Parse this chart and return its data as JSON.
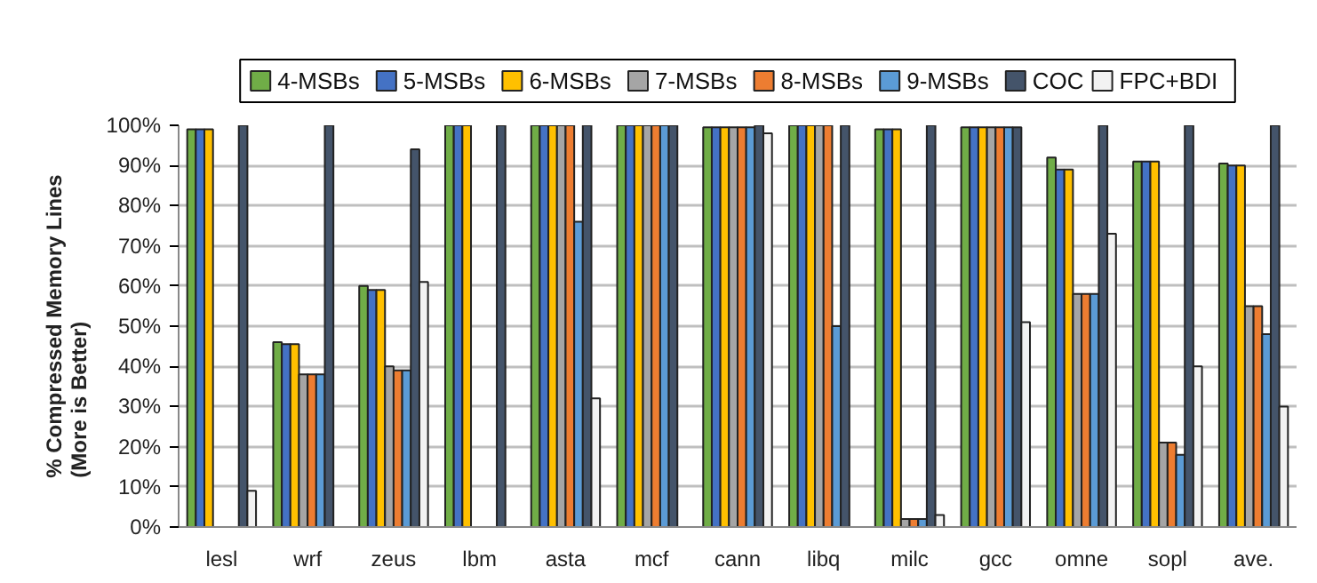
{
  "chart_data": {
    "type": "bar",
    "ylabel": "% Compressed Memory Lines\n(More is Better)",
    "categories": [
      "lesl",
      "wrf",
      "zeus",
      "lbm",
      "asta",
      "mcf",
      "cann",
      "libq",
      "milc",
      "gcc",
      "omne",
      "sopl",
      "ave."
    ],
    "series": [
      {
        "name": "4-MSBs",
        "color": "#70ad47",
        "values": [
          99,
          46,
          60,
          100,
          100,
          100,
          99.5,
          100,
          99,
          99.5,
          92,
          91,
          90.5
        ]
      },
      {
        "name": "5-MSBs",
        "color": "#4472c4",
        "values": [
          99,
          45.5,
          59,
          100,
          100,
          100,
          99.5,
          100,
          99,
          99.5,
          89,
          91,
          90
        ]
      },
      {
        "name": "6-MSBs",
        "color": "#ffc000",
        "values": [
          99,
          45.5,
          59,
          100,
          100,
          100,
          99.5,
          100,
          99,
          99.5,
          89,
          91,
          90
        ]
      },
      {
        "name": "7-MSBs",
        "color": "#a5a5a5",
        "values": [
          0,
          38,
          40,
          0,
          100,
          100,
          99.5,
          100,
          2,
          99.5,
          58,
          21,
          55
        ]
      },
      {
        "name": "8-MSBs",
        "color": "#ed7d31",
        "values": [
          0,
          38,
          39,
          0,
          100,
          100,
          99.5,
          100,
          2,
          99.5,
          58,
          21,
          55
        ]
      },
      {
        "name": "9-MSBs",
        "color": "#5b9bd5",
        "values": [
          0,
          38,
          39,
          0,
          76,
          100,
          99.5,
          50,
          2,
          99.5,
          58,
          18,
          48
        ]
      },
      {
        "name": "COC",
        "color": "#44546a",
        "values": [
          100,
          100,
          94,
          100,
          100,
          100,
          100,
          100,
          100,
          99.5,
          100,
          100,
          100
        ]
      },
      {
        "name": "FPC+BDI",
        "color": "#f2f2f2",
        "values": [
          9,
          0,
          61,
          0,
          32,
          0,
          98,
          0,
          3,
          51,
          73,
          40,
          30
        ]
      }
    ],
    "ylim": [
      0,
      100
    ],
    "yticks": [
      {
        "value": 0,
        "label": "0%"
      },
      {
        "value": 10,
        "label": "10%"
      },
      {
        "value": 20,
        "label": "20%"
      },
      {
        "value": 30,
        "label": "30%"
      },
      {
        "value": 40,
        "label": "40%"
      },
      {
        "value": 50,
        "label": "50%"
      },
      {
        "value": 60,
        "label": "60%"
      },
      {
        "value": 70,
        "label": "70%"
      },
      {
        "value": 80,
        "label": "80%"
      },
      {
        "value": 90,
        "label": "90%"
      },
      {
        "value": 100,
        "label": "100%"
      }
    ],
    "grid": "y",
    "legend": "top"
  }
}
